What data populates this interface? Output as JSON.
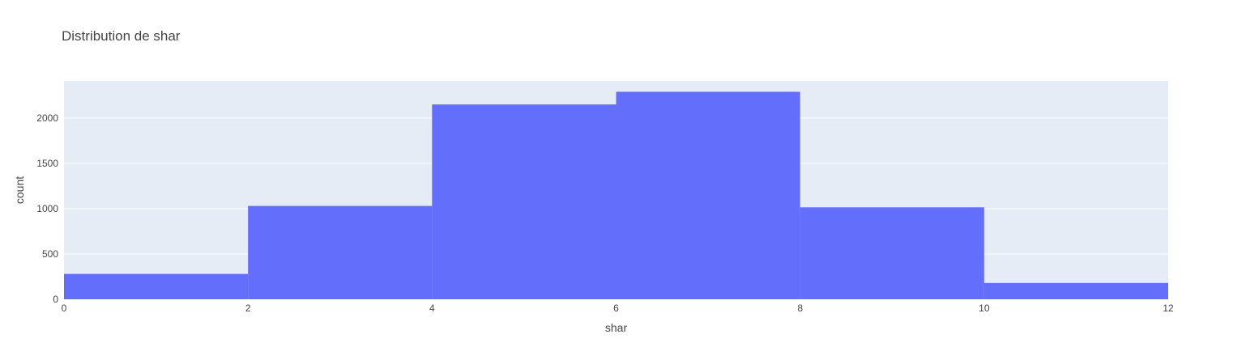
{
  "colors": {
    "plot_background": "#e5ecf6",
    "gridline": "#ffffff",
    "bar_fill": "#636efa",
    "text": "#444444"
  },
  "chart_data": {
    "type": "bar",
    "title": "Distribution de shar",
    "xlabel": "shar",
    "ylabel": "count",
    "bins": [
      {
        "start": 0,
        "end": 2,
        "count": 280
      },
      {
        "start": 2,
        "end": 4,
        "count": 1030
      },
      {
        "start": 4,
        "end": 6,
        "count": 2150
      },
      {
        "start": 6,
        "end": 8,
        "count": 2290
      },
      {
        "start": 8,
        "end": 10,
        "count": 1015
      },
      {
        "start": 10,
        "end": 12,
        "count": 180
      }
    ],
    "xlim": [
      0,
      12
    ],
    "ylim": [
      0,
      2410
    ],
    "xticks": [
      0,
      2,
      4,
      6,
      8,
      10,
      12
    ],
    "yticks": [
      0,
      500,
      1000,
      1500,
      2000
    ],
    "grid": true,
    "legend": false
  }
}
